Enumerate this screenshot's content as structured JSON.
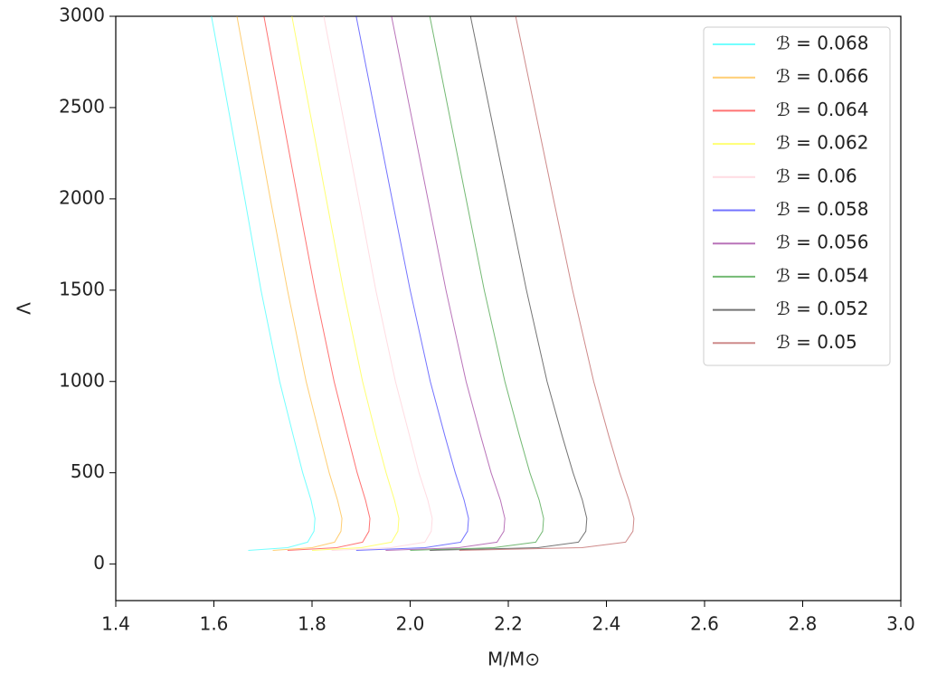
{
  "chart_data": {
    "type": "line",
    "x_label": "M/M⊙",
    "y_label": "Λ",
    "xlim": [
      1.4,
      3.0
    ],
    "ylim": [
      -200,
      3000
    ],
    "xticks": [
      1.4,
      1.6,
      1.8,
      {
        "value": 2,
        "label": "2.0"
      },
      2.2,
      2.4,
      2.6,
      2.8,
      {
        "value": 3,
        "label": "3.0"
      }
    ],
    "yticks": [
      0,
      500,
      1000,
      1500,
      2000,
      2500,
      3000
    ],
    "grid": false,
    "legend": "upper right",
    "series": [
      {
        "name": "ℬ = 0.068",
        "color": "#00ffff",
        "x": [
          1.595,
          1.663,
          1.696,
          1.734,
          1.762,
          1.781,
          1.798,
          1.806,
          1.804,
          1.791,
          1.75,
          1.67
        ],
        "values": [
          3000,
          2000,
          1500,
          1000,
          700,
          500,
          350,
          250,
          180,
          120,
          90,
          75
        ]
      },
      {
        "name": "ℬ = 0.066",
        "color": "#ffa500",
        "x": [
          1.647,
          1.715,
          1.75,
          1.788,
          1.816,
          1.835,
          1.852,
          1.861,
          1.859,
          1.846,
          1.8,
          1.72
        ],
        "values": [
          3000,
          2000,
          1500,
          1000,
          700,
          500,
          350,
          250,
          180,
          120,
          90,
          75
        ]
      },
      {
        "name": "ℬ = 0.064",
        "color": "#ff0000",
        "x": [
          1.702,
          1.771,
          1.806,
          1.845,
          1.873,
          1.892,
          1.909,
          1.918,
          1.916,
          1.903,
          1.85,
          1.75
        ],
        "values": [
          3000,
          2000,
          1500,
          1000,
          700,
          500,
          350,
          250,
          180,
          120,
          90,
          75
        ]
      },
      {
        "name": "ℬ = 0.062",
        "color": "#ffff00",
        "x": [
          1.759,
          1.829,
          1.864,
          1.903,
          1.931,
          1.951,
          1.968,
          1.977,
          1.975,
          1.962,
          1.9,
          1.8
        ],
        "values": [
          3000,
          2000,
          1500,
          1000,
          700,
          500,
          350,
          250,
          180,
          120,
          90,
          75
        ]
      },
      {
        "name": "ℬ = 0.06",
        "color": "#ffc0cb",
        "x": [
          1.824,
          1.895,
          1.93,
          1.97,
          1.999,
          2.018,
          2.036,
          2.045,
          2.043,
          2.03,
          1.96,
          1.84
        ],
        "values": [
          3000,
          2000,
          1500,
          1000,
          700,
          500,
          350,
          250,
          180,
          120,
          90,
          75
        ]
      },
      {
        "name": "ℬ = 0.058",
        "color": "#0000ff",
        "x": [
          1.89,
          1.963,
          2.0,
          2.041,
          2.071,
          2.092,
          2.11,
          2.119,
          2.117,
          2.103,
          2.03,
          1.89
        ],
        "values": [
          3000,
          2000,
          1500,
          1000,
          700,
          500,
          350,
          250,
          180,
          120,
          90,
          75
        ]
      },
      {
        "name": "ℬ = 0.056",
        "color": "#800080",
        "x": [
          1.962,
          2.036,
          2.073,
          2.114,
          2.144,
          2.165,
          2.184,
          2.193,
          2.191,
          2.177,
          2.1,
          1.95
        ],
        "values": [
          3000,
          2000,
          1500,
          1000,
          700,
          500,
          350,
          250,
          180,
          120,
          90,
          75
        ]
      },
      {
        "name": "ℬ = 0.054",
        "color": "#008000",
        "x": [
          2.04,
          2.114,
          2.151,
          2.193,
          2.223,
          2.244,
          2.263,
          2.272,
          2.27,
          2.256,
          2.17,
          2.0
        ],
        "values": [
          3000,
          2000,
          1500,
          1000,
          700,
          500,
          350,
          250,
          180,
          120,
          90,
          75
        ]
      },
      {
        "name": "ℬ = 0.052",
        "color": "#000000",
        "x": [
          2.123,
          2.199,
          2.237,
          2.279,
          2.31,
          2.332,
          2.351,
          2.36,
          2.358,
          2.343,
          2.26,
          2.04
        ],
        "values": [
          3000,
          2000,
          1500,
          1000,
          700,
          500,
          350,
          250,
          180,
          120,
          90,
          75
        ]
      },
      {
        "name": "ℬ = 0.05",
        "color": "#a52a2a",
        "x": [
          2.215,
          2.292,
          2.331,
          2.374,
          2.405,
          2.427,
          2.446,
          2.456,
          2.454,
          2.439,
          2.35,
          2.1
        ],
        "values": [
          3000,
          2000,
          1500,
          1000,
          700,
          500,
          350,
          250,
          180,
          120,
          90,
          75
        ]
      }
    ]
  }
}
